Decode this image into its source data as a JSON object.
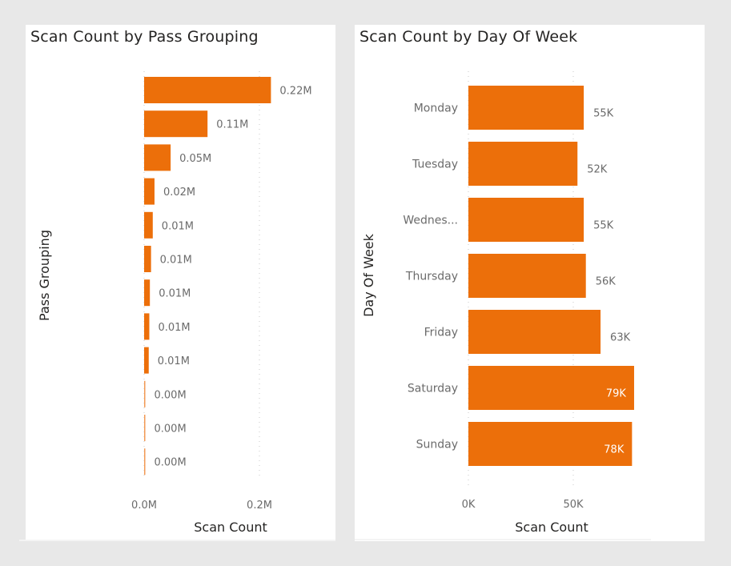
{
  "colors": {
    "bar": "#ec6f0a",
    "bar_faint": "#f29a55",
    "background": "#e8e8e8",
    "panel": "#ffffff",
    "text_dark": "#252423",
    "text_muted": "#6b6b6b"
  },
  "chart_data": [
    {
      "type": "bar",
      "orientation": "horizontal",
      "title": "Scan Count by Pass Grouping",
      "xlabel": "Scan Count",
      "ylabel": "Pass Grouping",
      "categories": [
        "",
        "",
        "",
        "",
        "",
        "",
        "",
        "",
        "",
        "",
        "",
        ""
      ],
      "values": [
        0.22,
        0.11,
        0.046,
        0.018,
        0.015,
        0.012,
        0.01,
        0.009,
        0.008,
        0.002,
        0.002,
        0.002
      ],
      "value_units": "M",
      "data_labels": [
        "0.22M",
        "0.11M",
        "0.05M",
        "0.02M",
        "0.01M",
        "0.01M",
        "0.01M",
        "0.01M",
        "0.01M",
        "0.00M",
        "0.00M",
        "0.00M"
      ],
      "xticks": [
        0,
        0.2
      ],
      "xtick_labels": [
        "0.0M",
        "0.2M"
      ],
      "xlim": [
        0,
        0.25
      ],
      "grid": true,
      "legend": "none"
    },
    {
      "type": "bar",
      "orientation": "horizontal",
      "title": "Scan Count by Day Of Week",
      "xlabel": "Scan Count",
      "ylabel": "Day Of Week",
      "categories": [
        "Monday",
        "Tuesday",
        "Wednes...",
        "Thursday",
        "Friday",
        "Saturday",
        "Sunday"
      ],
      "values": [
        55,
        52,
        55,
        56,
        63,
        79,
        78
      ],
      "value_units": "K",
      "data_labels": [
        "55K",
        "52K",
        "55K",
        "56K",
        "63K",
        "79K",
        "78K"
      ],
      "labels_inside": [
        false,
        false,
        false,
        false,
        false,
        true,
        true
      ],
      "xticks": [
        0,
        50
      ],
      "xtick_labels": [
        "0K",
        "50K"
      ],
      "xlim": [
        0,
        80
      ],
      "grid": true,
      "legend": "none"
    }
  ]
}
